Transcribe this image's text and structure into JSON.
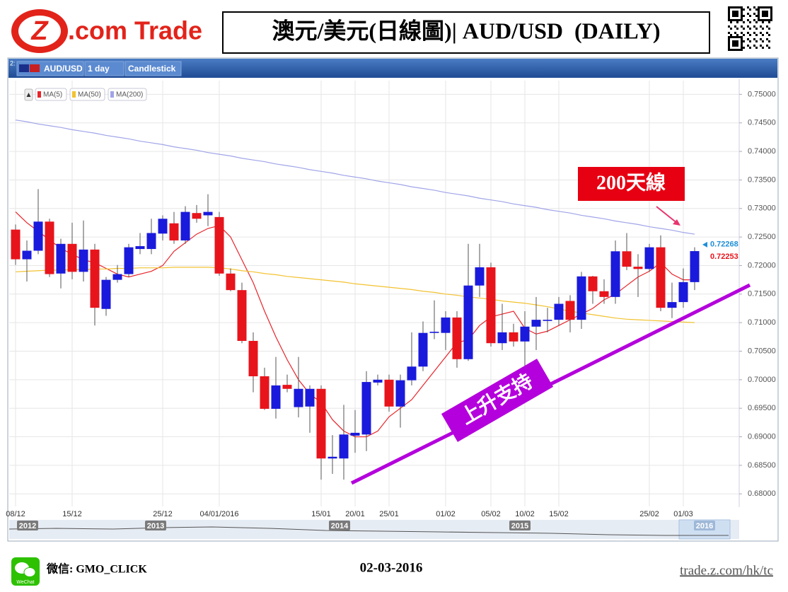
{
  "header": {
    "logo_mark": "Z",
    "logo_text": ".com Trade",
    "title": "澳元/美元(日線圖)| AUD/USD  (DAILY)"
  },
  "toolbar": {
    "panel": "2:",
    "symbol": "AUD/USD",
    "interval": "1 day",
    "style": "Candlestick"
  },
  "chart_data": {
    "type": "candlestick",
    "categories": [
      "08/12",
      null,
      null,
      null,
      null,
      "15/12",
      null,
      null,
      null,
      null,
      null,
      null,
      null,
      "25/12",
      null,
      null,
      null,
      null,
      "04/01/2016",
      null,
      null,
      null,
      null,
      null,
      null,
      null,
      null,
      "15/01",
      null,
      null,
      "20/01",
      null,
      null,
      "25/01",
      null,
      null,
      null,
      null,
      "01/02",
      null,
      null,
      null,
      "05/02",
      null,
      null,
      "10/02",
      null,
      null,
      "15/02",
      null,
      null,
      null,
      null,
      null,
      null,
      null,
      "25/02",
      null,
      null,
      "01/03",
      null
    ],
    "ohlc": {
      "up_color": "#1a1adc",
      "down_color": "#e8141c",
      "open": [
        0.7263,
        0.7211,
        0.7226,
        0.7277,
        0.7186,
        0.7238,
        0.7189,
        0.7228,
        0.7124,
        0.7175,
        0.7185,
        0.7229,
        0.7229,
        0.7256,
        0.7274,
        0.7244,
        0.7292,
        0.7288,
        0.7285,
        0.7186,
        0.7157,
        0.7068,
        0.7006,
        0.6949,
        0.6991,
        0.6952,
        0.6953,
        0.6984,
        0.6862,
        0.6862,
        0.6902,
        0.6904,
        0.6995,
        0.7,
        0.6953,
        0.6999,
        0.7023,
        0.7082,
        0.7082,
        0.7109,
        0.7036,
        0.7165,
        0.7197,
        0.7064,
        0.7083,
        0.7067,
        0.7093,
        0.7103,
        0.7105,
        0.7138,
        0.7105,
        0.7181,
        0.7155,
        0.7145,
        0.7225,
        0.7198,
        0.7194,
        0.7232,
        0.7126,
        0.7136,
        0.7171
      ],
      "high": [
        0.7272,
        0.7244,
        0.7334,
        0.7282,
        0.7247,
        0.7275,
        0.7279,
        0.7238,
        0.718,
        0.7201,
        0.7238,
        0.7257,
        0.7282,
        0.7288,
        0.7294,
        0.7304,
        0.7306,
        0.7325,
        0.7294,
        0.7195,
        0.717,
        0.7083,
        0.7021,
        0.704,
        0.7009,
        0.704,
        0.699,
        0.699,
        0.6903,
        0.6956,
        0.6947,
        0.7015,
        0.7009,
        0.7009,
        0.7009,
        0.7083,
        0.7102,
        0.7139,
        0.712,
        0.712,
        0.7238,
        0.7238,
        0.7205,
        0.7133,
        0.7098,
        0.712,
        0.7145,
        0.7126,
        0.7145,
        0.7148,
        0.7189,
        0.7182,
        0.7176,
        0.7244,
        0.7257,
        0.722,
        0.7238,
        0.7253,
        0.717,
        0.7195,
        0.7232
      ],
      "low": [
        0.7201,
        0.7172,
        0.722,
        0.718,
        0.716,
        0.7176,
        0.7172,
        0.7095,
        0.7112,
        0.717,
        0.718,
        0.722,
        0.722,
        0.7244,
        0.7238,
        0.7238,
        0.7275,
        0.7269,
        0.7182,
        0.7155,
        0.7064,
        0.6978,
        0.6947,
        0.6932,
        0.6978,
        0.6934,
        0.6907,
        0.6825,
        0.6835,
        0.6825,
        0.6872,
        0.6875,
        0.699,
        0.6944,
        0.6916,
        0.699,
        0.7015,
        0.7071,
        0.7052,
        0.7021,
        0.7033,
        0.7145,
        0.7058,
        0.7052,
        0.7058,
        0.7021,
        0.7052,
        0.7083,
        0.7095,
        0.7083,
        0.7089,
        0.7133,
        0.7133,
        0.7133,
        0.7192,
        0.7145,
        0.7189,
        0.712,
        0.7108,
        0.7126,
        0.7157
      ],
      "close": [
        0.7211,
        0.7226,
        0.7277,
        0.7185,
        0.7238,
        0.7189,
        0.7228,
        0.7126,
        0.7175,
        0.7185,
        0.7232,
        0.7234,
        0.7257,
        0.7282,
        0.7244,
        0.7294,
        0.7282,
        0.7294,
        0.7186,
        0.7157,
        0.7068,
        0.7006,
        0.6949,
        0.699,
        0.6984,
        0.6984,
        0.6984,
        0.6862,
        0.6865,
        0.6904,
        0.6907,
        0.6996,
        0.7,
        0.6953,
        0.6999,
        0.7023,
        0.7082,
        0.7084,
        0.7109,
        0.7036,
        0.7165,
        0.7197,
        0.7064,
        0.7083,
        0.7067,
        0.7093,
        0.7105,
        0.7105,
        0.7133,
        0.7105,
        0.7181,
        0.7155,
        0.7145,
        0.7225,
        0.7198,
        0.7194,
        0.7232,
        0.7126,
        0.7136,
        0.7171,
        0.72253
      ]
    },
    "series": [
      {
        "name": "MA(5)",
        "color": "#e8242a",
        "values": [
          0.7294,
          0.7275,
          0.726,
          0.7245,
          0.723,
          0.722,
          0.721,
          0.7205,
          0.7195,
          0.7185,
          0.718,
          0.7185,
          0.719,
          0.72,
          0.7225,
          0.724,
          0.7255,
          0.7265,
          0.727,
          0.725,
          0.721,
          0.717,
          0.712,
          0.7075,
          0.7035,
          0.7,
          0.6975,
          0.696,
          0.693,
          0.691,
          0.69,
          0.69,
          0.691,
          0.6935,
          0.695,
          0.6965,
          0.699,
          0.7015,
          0.704,
          0.7065,
          0.707,
          0.7095,
          0.711,
          0.7115,
          0.712,
          0.709,
          0.708,
          0.7085,
          0.7095,
          0.7105,
          0.7115,
          0.7125,
          0.714,
          0.715,
          0.7165,
          0.718,
          0.719,
          0.7205,
          0.7185,
          0.7175,
          0.7175
        ]
      },
      {
        "name": "MA(50)",
        "color": "#f2c230",
        "values": [
          0.7189,
          0.719,
          0.7191,
          0.7192,
          0.7192,
          0.7193,
          0.7193,
          0.7194,
          0.7194,
          0.7195,
          0.7195,
          0.7196,
          0.7196,
          0.7196,
          0.7197,
          0.7197,
          0.7197,
          0.7197,
          0.7196,
          0.7194,
          0.7191,
          0.7189,
          0.7186,
          0.7184,
          0.7181,
          0.7179,
          0.7177,
          0.7175,
          0.7173,
          0.7171,
          0.7168,
          0.7166,
          0.7164,
          0.7162,
          0.716,
          0.7158,
          0.7155,
          0.7153,
          0.715,
          0.7148,
          0.7145,
          0.7143,
          0.7141,
          0.7138,
          0.7136,
          0.7134,
          0.7131,
          0.7128,
          0.7124,
          0.712,
          0.7117,
          0.7114,
          0.7111,
          0.7108,
          0.7106,
          0.7105,
          0.7104,
          0.7103,
          0.7102,
          0.7101,
          0.71
        ]
      },
      {
        "name": "MA(200)",
        "color": "#a0a4e8",
        "values": [
          0.7455,
          0.7452,
          0.7448,
          0.7445,
          0.7442,
          0.7438,
          0.7435,
          0.7432,
          0.7428,
          0.7425,
          0.7422,
          0.7418,
          0.7415,
          0.7412,
          0.7408,
          0.7405,
          0.7402,
          0.7398,
          0.7395,
          0.7392,
          0.7388,
          0.7385,
          0.7382,
          0.7378,
          0.7375,
          0.7372,
          0.7368,
          0.7365,
          0.7362,
          0.7358,
          0.7355,
          0.7352,
          0.7348,
          0.7345,
          0.7342,
          0.7338,
          0.7335,
          0.7332,
          0.7328,
          0.7325,
          0.7322,
          0.7318,
          0.7315,
          0.7312,
          0.7308,
          0.7305,
          0.7302,
          0.7298,
          0.7295,
          0.7292,
          0.7288,
          0.7285,
          0.7282,
          0.7278,
          0.7275,
          0.7272,
          0.7268,
          0.7265,
          0.7262,
          0.7258,
          0.7255
        ]
      }
    ],
    "ylim": [
      0.6778,
      0.7524
    ],
    "yticks": [
      {
        "value": 0.68,
        "label": "0.68000"
      },
      {
        "value": 0.685,
        "label": "0.68500"
      },
      {
        "value": 0.69,
        "label": "0.69000"
      },
      {
        "value": 0.695,
        "label": "0.69500"
      },
      {
        "value": 0.7,
        "label": "0.70000"
      },
      {
        "value": 0.705,
        "label": "0.70500"
      },
      {
        "value": 0.71,
        "label": "0.71000"
      },
      {
        "value": 0.715,
        "label": "0.71500"
      },
      {
        "value": 0.72,
        "label": "0.72000"
      },
      {
        "value": 0.725,
        "label": "0.72500"
      },
      {
        "value": 0.73,
        "label": "0.73000"
      },
      {
        "value": 0.735,
        "label": "0.73500"
      },
      {
        "value": 0.74,
        "label": "0.74000"
      },
      {
        "value": 0.745,
        "label": "0.74500"
      },
      {
        "value": 0.75,
        "label": "0.75000"
      }
    ],
    "grid": true,
    "last_prices": [
      {
        "value": 0.72268,
        "label": "0.72268",
        "color": "#1e8fd8"
      },
      {
        "value": 0.72253,
        "label": "0.72253",
        "color": "#e8141c"
      }
    ],
    "annotations": {
      "ma200": "200天線",
      "support": "上升支持"
    }
  },
  "navigator": {
    "years": [
      "2012",
      "2013",
      "2014",
      "2015",
      "2016"
    ]
  },
  "footer": {
    "wechat_icon": "WeChat",
    "wechat": "微信: GMO_CLICK",
    "date": "02-03-2016",
    "url": "trade.z.com/hk/tc"
  }
}
